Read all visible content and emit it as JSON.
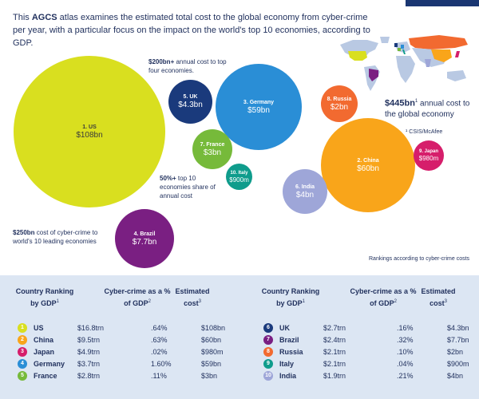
{
  "intro": {
    "prefix": "This ",
    "brand": "AGCS",
    "text": " atlas examines the estimated total cost to the global economy from cyber-crime per year, with a particular focus on the impact on the world's top 10 economies, according to GDP."
  },
  "callouts": {
    "top_four_bold": "$200bn+",
    "top_four_text": " annual cost to top four economies.",
    "share_bold": "50%+",
    "share_text": " top 10 economies share of annual cost",
    "leading_bold": "$250bn",
    "leading_text": " cost of cyber-crime to world's 10 leading economies"
  },
  "annual": {
    "value": "$445bn",
    "sup": "1",
    "text": " annual cost to the global economy"
  },
  "source": "¹ CSIS/McAfee",
  "rankings_note": "Rankings according to cyber-crime costs",
  "bubbles": [
    {
      "label": "1. US",
      "value": "$108bn",
      "color": "#d9df1f"
    },
    {
      "label": "2. China",
      "value": "$60bn",
      "color": "#f9a51a"
    },
    {
      "label": "3. Germany",
      "value": "$59bn",
      "color": "#2a8ed6"
    },
    {
      "label": "4. Brazil",
      "value": "$7.7bn",
      "color": "#7a1f82"
    },
    {
      "label": "5. UK",
      "value": "$4.3bn",
      "color": "#1a3a7c"
    },
    {
      "label": "6. India",
      "value": "$4bn",
      "color": "#9ea6d8"
    },
    {
      "label": "7. France",
      "value": "$3bn",
      "color": "#76ba3a"
    },
    {
      "label": "8. Russia",
      "value": "$2bn",
      "color": "#f26a30"
    },
    {
      "label": "9. Japan",
      "value": "$980m",
      "color": "#d61e6b"
    },
    {
      "label": "10. Italy",
      "value": "$900m",
      "color": "#0f9c8c"
    }
  ],
  "table": {
    "headers": {
      "ranking": "Country Ranking by GDP",
      "ranking_sup": "1",
      "share": "Cyber-crime as a % of GDP",
      "share_sup": "2",
      "cost": "Estimated cost",
      "cost_sup": "3"
    },
    "left": [
      {
        "rank": "1",
        "country": "US",
        "gdp": "$16.8trn",
        "pct": ".64%",
        "cost": "$108bn",
        "color": "#d9df1f"
      },
      {
        "rank": "2",
        "country": "China",
        "gdp": "$9.5trn",
        "pct": ".63%",
        "cost": "$60bn",
        "color": "#f9a51a"
      },
      {
        "rank": "3",
        "country": "Japan",
        "gdp": "$4.9trn",
        "pct": ".02%",
        "cost": "$980m",
        "color": "#d61e6b"
      },
      {
        "rank": "4",
        "country": "Germany",
        "gdp": "$3.7trn",
        "pct": "1.60%",
        "cost": "$59bn",
        "color": "#2a8ed6"
      },
      {
        "rank": "5",
        "country": "France",
        "gdp": "$2.8trn",
        "pct": ".11%",
        "cost": "$3bn",
        "color": "#76ba3a"
      }
    ],
    "right": [
      {
        "rank": "6",
        "country": "UK",
        "gdp": "$2.7trn",
        "pct": ".16%",
        "cost": "$4.3bn",
        "color": "#1a3a7c"
      },
      {
        "rank": "7",
        "country": "Brazil",
        "gdp": "$2.4trn",
        "pct": ".32%",
        "cost": "$7.7bn",
        "color": "#7a1f82"
      },
      {
        "rank": "8",
        "country": "Russia",
        "gdp": "$2.1trn",
        "pct": ".10%",
        "cost": "$2bn",
        "color": "#f26a30"
      },
      {
        "rank": "9",
        "country": "Italy",
        "gdp": "$2.1trn",
        "pct": ".04%",
        "cost": "$900m",
        "color": "#0f9c8c"
      },
      {
        "rank": "10",
        "country": "India",
        "gdp": "$1.9trn",
        "pct": ".21%",
        "cost": "$4bn",
        "color": "#9ea6d8"
      }
    ]
  }
}
